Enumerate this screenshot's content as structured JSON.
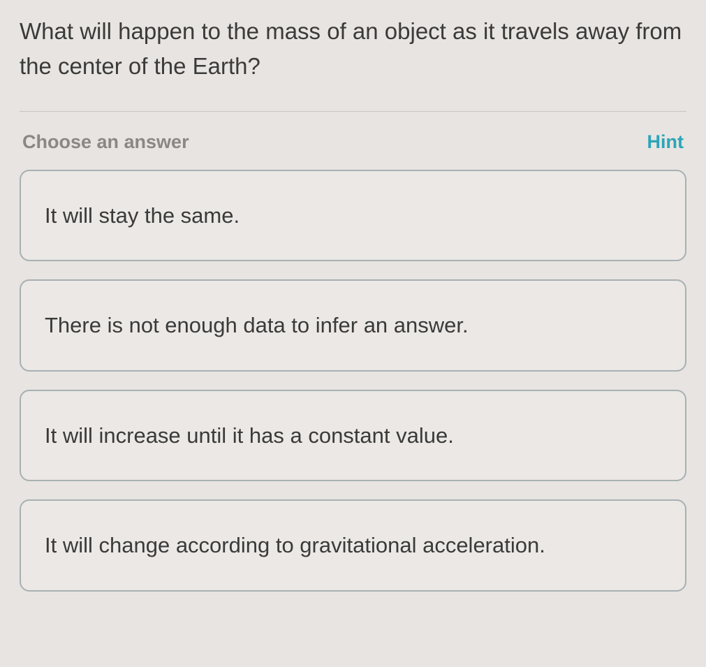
{
  "question": {
    "text": "What will happen to the mass of an object as it travels away from the center of the Earth?"
  },
  "answerSection": {
    "chooseLabel": "Choose an answer",
    "hintLabel": "Hint"
  },
  "options": [
    {
      "text": "It will stay the same."
    },
    {
      "text": "There is not enough data to infer an answer."
    },
    {
      "text": "It will increase until it has a constant value."
    },
    {
      "text": "It will change according to gravitational acceleration."
    }
  ],
  "colors": {
    "background": "#e8e4e1",
    "text": "#3a3a3a",
    "muted": "#8a8784",
    "accent": "#2ca5b8",
    "border": "#a8b0b3",
    "divider": "#c8c4c0"
  }
}
